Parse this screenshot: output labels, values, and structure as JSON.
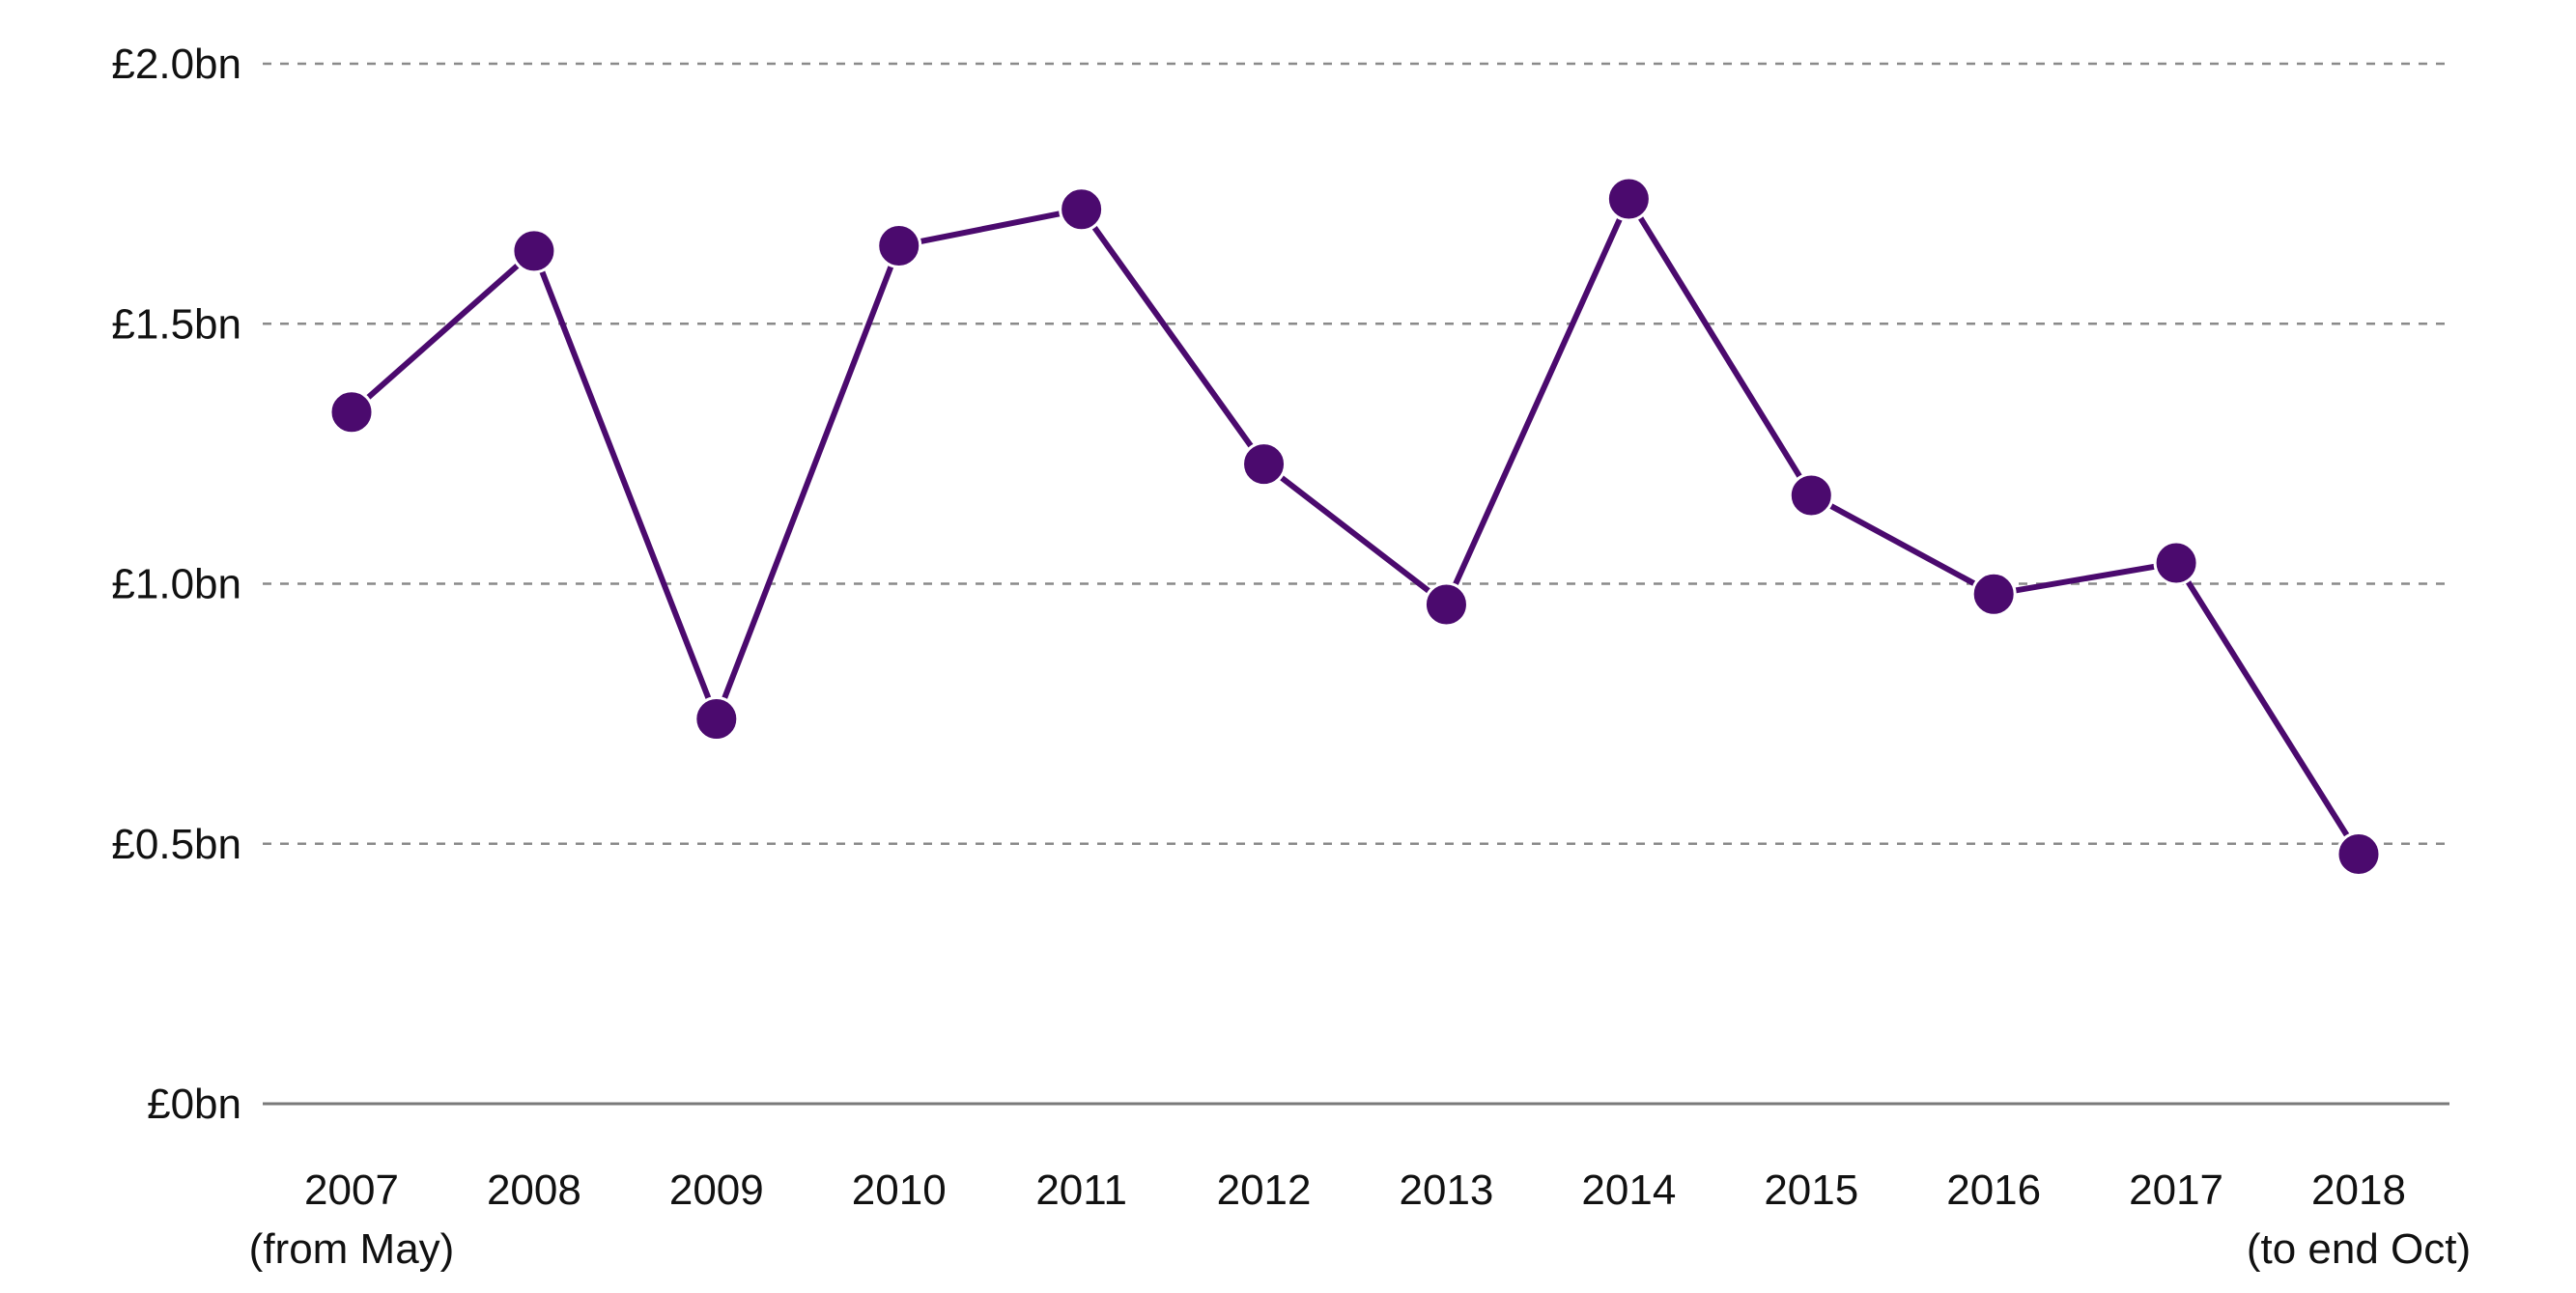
{
  "chart_data": {
    "type": "line",
    "title": "",
    "xlabel": "",
    "ylabel": "",
    "categories": [
      "2007",
      "2008",
      "2009",
      "2010",
      "2011",
      "2012",
      "2013",
      "2014",
      "2015",
      "2016",
      "2017",
      "2018"
    ],
    "category_sublabels": [
      "(from May)",
      "",
      "",
      "",
      "",
      "",
      "",
      "",
      "",
      "",
      "",
      "(to end Oct)"
    ],
    "y_ticks": [
      0,
      0.5,
      1.0,
      1.5,
      2.0
    ],
    "y_tick_labels": [
      "£0bn",
      "£0.5bn",
      "£1.0bn",
      "£1.5bn",
      "£2.0bn"
    ],
    "ylim": [
      0,
      2.0
    ],
    "grid": "horizontal dashed",
    "legend": "none",
    "series": [
      {
        "values": [
          1.33,
          1.64,
          0.74,
          1.65,
          1.72,
          1.23,
          0.96,
          1.74,
          1.17,
          0.98,
          1.04,
          0.48
        ],
        "color": "#4b0a6e"
      }
    ],
    "colors": {
      "line": "#4b0a6e",
      "marker": "#4b0a6e",
      "marker_stroke": "#ffffff",
      "grid": "#8a8a8a",
      "baseline": "#7a7a7a",
      "text": "#111111"
    }
  }
}
